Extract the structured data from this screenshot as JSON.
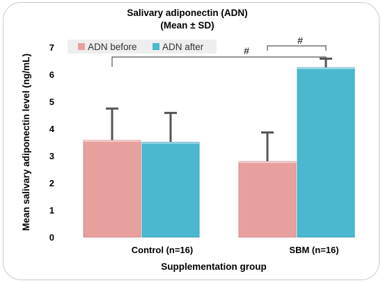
{
  "chart_data": {
    "type": "bar",
    "title": "Salivary adiponectin (ADN)",
    "subtitle": "(Mean ± SD)",
    "xlabel": "Supplementation group",
    "ylabel": "Mean salivary adiponectin level (ng/mL)",
    "categories": [
      "Control  (n=16)",
      "SBM (n=16)"
    ],
    "series": [
      {
        "name": "ADN before",
        "color": "#e8a09e",
        "values": [
          3.57,
          2.79
        ],
        "error": [
          1.17,
          1.07
        ]
      },
      {
        "name": "ADN after",
        "color": "#4bb8cf",
        "values": [
          3.5,
          6.25
        ],
        "error": [
          1.08,
          0.33
        ]
      }
    ],
    "ylim": [
      0,
      7
    ],
    "yticks": [
      0,
      1,
      2,
      3,
      4,
      5,
      6,
      7
    ],
    "grid": false,
    "legend_position": "top-left",
    "annotations": [
      {
        "text": "#",
        "between": "ADN before Control – ADN after SBM"
      },
      {
        "text": "#",
        "between": "ADN before SBM – ADN after SBM"
      }
    ]
  }
}
